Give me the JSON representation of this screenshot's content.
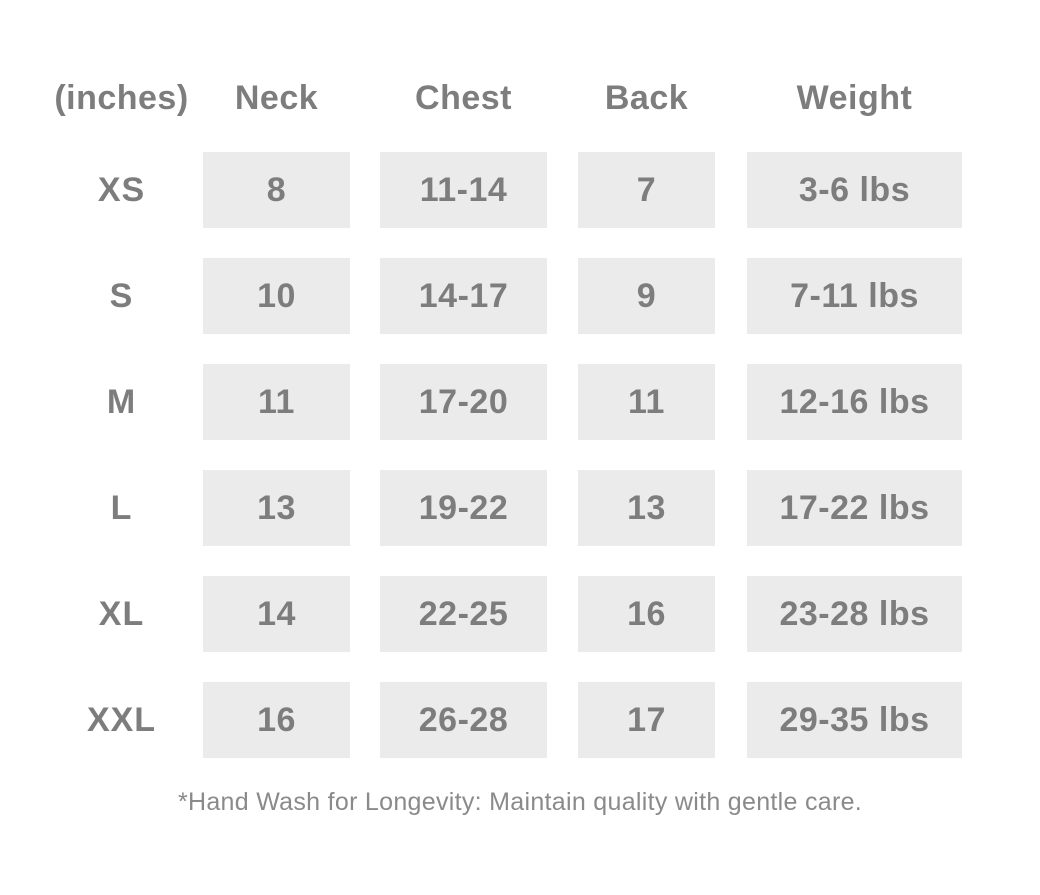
{
  "chart_data": {
    "type": "table",
    "unit_label": "(inches)",
    "columns": [
      "Neck",
      "Chest",
      "Back",
      "Weight"
    ],
    "row_labels": [
      "XS",
      "S",
      "M",
      "L",
      "XL",
      "XXL"
    ],
    "rows": [
      {
        "size": "XS",
        "neck": "8",
        "chest": "11-14",
        "back": "7",
        "weight": "3-6 lbs"
      },
      {
        "size": "S",
        "neck": "10",
        "chest": "14-17",
        "back": "9",
        "weight": "7-11 lbs"
      },
      {
        "size": "M",
        "neck": "11",
        "chest": "17-20",
        "back": "11",
        "weight": "12-16 lbs"
      },
      {
        "size": "L",
        "neck": "13",
        "chest": "19-22",
        "back": "13",
        "weight": "17-22 lbs"
      },
      {
        "size": "XL",
        "neck": "14",
        "chest": "22-25",
        "back": "16",
        "weight": "23-28 lbs"
      },
      {
        "size": "XXL",
        "neck": "16",
        "chest": "26-28",
        "back": "17",
        "weight": "29-35 lbs"
      }
    ],
    "footnote": "*Hand Wash for Longevity: Maintain quality with gentle care.",
    "layout": "size rows vertical, measurement columns horizontal, values shown in shaded boxes",
    "colors": {
      "background": "#ffffff",
      "cell_background": "#ebebeb",
      "table_text": "#7d7d7d",
      "footnote_text": "#8a8a8a"
    }
  }
}
